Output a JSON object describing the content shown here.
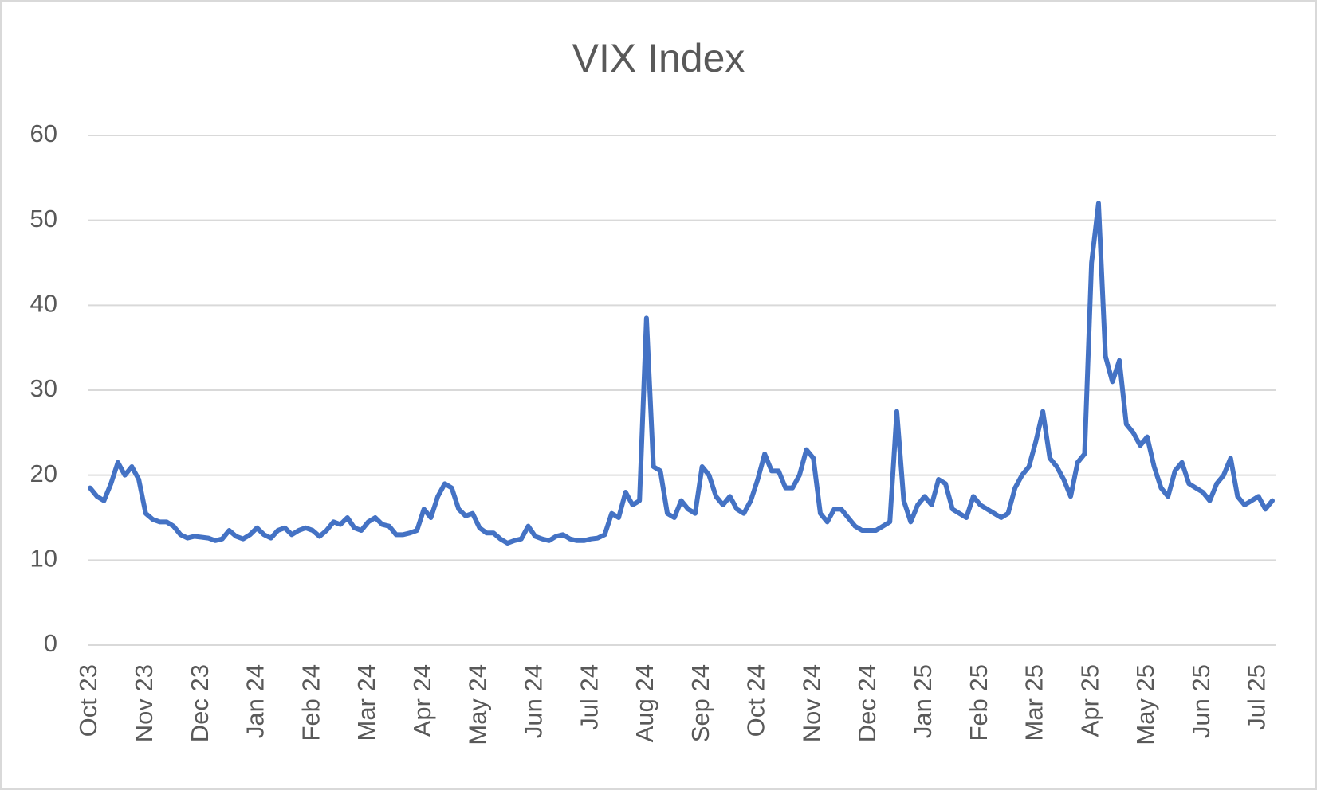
{
  "chart_data": {
    "type": "line",
    "title": "VIX Index",
    "series": [
      {
        "name": "VIX Index",
        "color": "#4472c4",
        "values": [
          18.5,
          17.5,
          17,
          19,
          21.5,
          20,
          21,
          19.5,
          15.5,
          14.8,
          14.5,
          14.5,
          14,
          13,
          12.6,
          12.8,
          12.7,
          12.6,
          12.3,
          12.5,
          13.5,
          12.8,
          12.5,
          13,
          13.8,
          13,
          12.6,
          13.5,
          13.8,
          13,
          13.5,
          13.8,
          13.5,
          12.8,
          13.5,
          14.5,
          14.2,
          15,
          13.8,
          13.5,
          14.5,
          15,
          14.2,
          14,
          13,
          13,
          13.2,
          13.5,
          16,
          15,
          17.5,
          19,
          18.5,
          16,
          15.2,
          15.5,
          13.8,
          13.2,
          13.2,
          12.5,
          12,
          12.3,
          12.5,
          14,
          12.8,
          12.5,
          12.3,
          12.8,
          13,
          12.5,
          12.3,
          12.3,
          12.5,
          12.6,
          13,
          15.5,
          15,
          18,
          16.5,
          17,
          38.5,
          21,
          20.5,
          15.5,
          15,
          17,
          16,
          15.5,
          21,
          20,
          17.5,
          16.5,
          17.5,
          16,
          15.5,
          17,
          19.5,
          22.5,
          20.5,
          20.5,
          18.5,
          18.5,
          20,
          23,
          22,
          15.5,
          14.5,
          16,
          16,
          15,
          14,
          13.5,
          13.5,
          13.5,
          14,
          14.5,
          27.5,
          17,
          14.5,
          16.5,
          17.5,
          16.5,
          19.5,
          19,
          16,
          15.5,
          15,
          17.5,
          16.5,
          16,
          15.5,
          15,
          15.5,
          18.5,
          20,
          21,
          24,
          27.5,
          22,
          21,
          19.5,
          17.5,
          21.5,
          22.5,
          45,
          52,
          34,
          31,
          33.5,
          26,
          25,
          23.5,
          24.5,
          21,
          18.5,
          17.5,
          20.5,
          21.5,
          19,
          18.5,
          18,
          17,
          19,
          20,
          22,
          17.5,
          16.5,
          17,
          17.5,
          16,
          17
        ]
      }
    ],
    "xlim": [
      0,
      170
    ],
    "xticks": [
      {
        "value": 0,
        "label": "Oct 23"
      },
      {
        "value": 8,
        "label": "Nov 23"
      },
      {
        "value": 16,
        "label": "Dec 23"
      },
      {
        "value": 24,
        "label": "Jan 24"
      },
      {
        "value": 32,
        "label": "Feb 24"
      },
      {
        "value": 40,
        "label": "Mar 24"
      },
      {
        "value": 48,
        "label": "Apr 24"
      },
      {
        "value": 56,
        "label": "May 24"
      },
      {
        "value": 64,
        "label": "Jun 24"
      },
      {
        "value": 72,
        "label": "Jul 24"
      },
      {
        "value": 80,
        "label": "Aug 24"
      },
      {
        "value": 88,
        "label": "Sep 24"
      },
      {
        "value": 96,
        "label": "Oct 24"
      },
      {
        "value": 104,
        "label": "Nov 24"
      },
      {
        "value": 112,
        "label": "Dec 24"
      },
      {
        "value": 120,
        "label": "Jan 25"
      },
      {
        "value": 128,
        "label": "Feb 25"
      },
      {
        "value": 136,
        "label": "Mar 25"
      },
      {
        "value": 144,
        "label": "Apr 25"
      },
      {
        "value": 152,
        "label": "May 25"
      },
      {
        "value": 160,
        "label": "Jun 25"
      },
      {
        "value": 168,
        "label": "Jul 25"
      }
    ],
    "ylim": [
      0,
      60
    ],
    "yticks": [
      0,
      10,
      20,
      30,
      40,
      50,
      60
    ],
    "grid": true
  }
}
